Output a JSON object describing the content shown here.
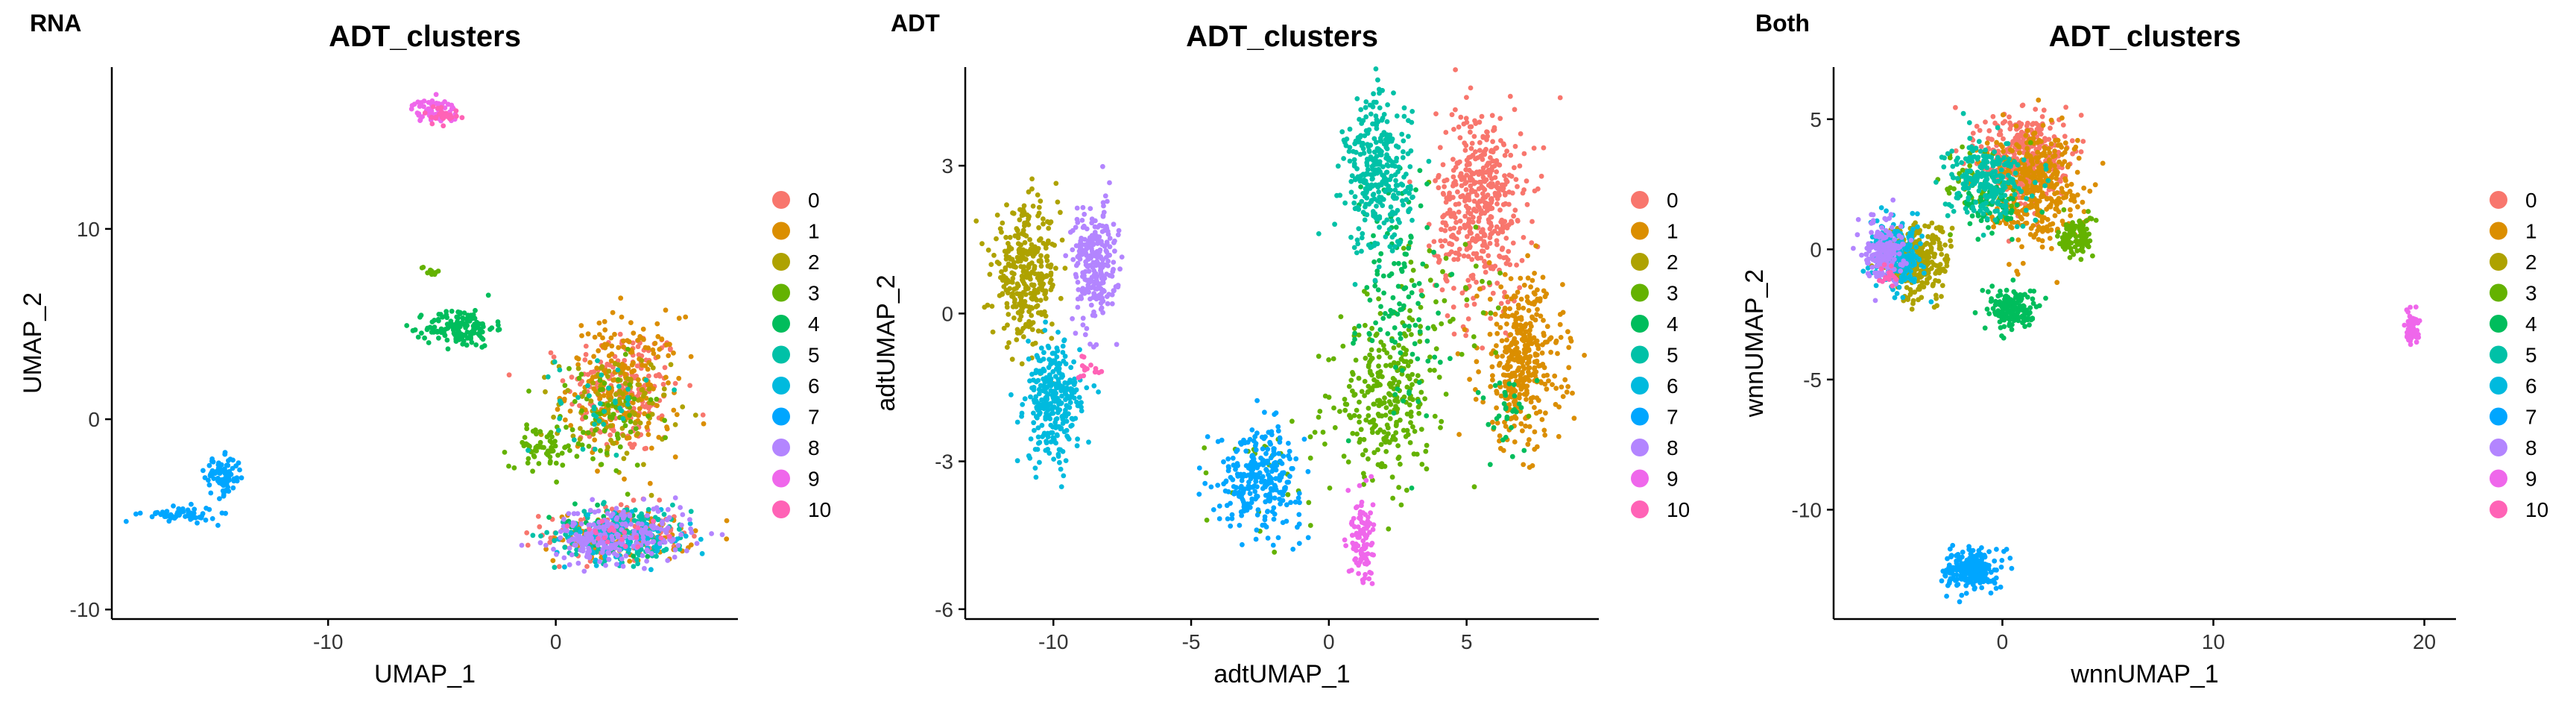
{
  "figure": {
    "panels": [
      {
        "tag": "RNA",
        "title": "ADT_clusters",
        "xlabel": "UMAP_1",
        "ylabel": "UMAP_2"
      },
      {
        "tag": "ADT",
        "title": "ADT_clusters",
        "xlabel": "adtUMAP_1",
        "ylabel": "adtUMAP_2"
      },
      {
        "tag": "Both",
        "title": "ADT_clusters",
        "xlabel": "wnnUMAP_1",
        "ylabel": "wnnUMAP_2"
      }
    ]
  },
  "chart_data": [
    {
      "type": "scatter",
      "tag": "RNA",
      "title": "ADT_clusters",
      "xlabel": "UMAP_1",
      "ylabel": "UMAP_2",
      "xlim": [
        -19.5,
        8.0
      ],
      "ylim": [
        -10.5,
        18.5
      ],
      "xticks": [
        -10,
        0
      ],
      "yticks": [
        -10,
        0,
        10
      ],
      "grid": false,
      "legend": {
        "position": "right",
        "labels": [
          "0",
          "1",
          "2",
          "3",
          "4",
          "5",
          "6",
          "7",
          "8",
          "9",
          "10"
        ]
      },
      "colors": [
        "#F8766D",
        "#DB8E00",
        "#AEA200",
        "#64B200",
        "#00BD5C",
        "#00C1A7",
        "#00BADE",
        "#00A6FF",
        "#B385FF",
        "#EF67EB",
        "#FF63B6"
      ],
      "clusters": [
        {
          "label": "0",
          "regions": [
            [
              3.0,
              1.5,
              2.5,
              3.5,
              200
            ],
            [
              2.5,
              -6.0,
              3.0,
              1.5,
              110
            ]
          ]
        },
        {
          "label": "1",
          "regions": [
            [
              3.0,
              1.8,
              2.5,
              3.6,
              210
            ],
            [
              3.0,
              -6.2,
              3.0,
              1.3,
              100
            ]
          ]
        },
        {
          "label": "2",
          "regions": [
            [
              2.5,
              0.5,
              2.5,
              3.0,
              100
            ]
          ]
        },
        {
          "label": "3",
          "regions": [
            [
              -0.5,
              -1.5,
              1.5,
              1.0,
              60
            ],
            [
              2.0,
              0.0,
              2.5,
              3.0,
              70
            ],
            [
              -5.5,
              7.8,
              0.4,
              0.3,
              10
            ]
          ]
        },
        {
          "label": "4",
          "regions": [
            [
              -4.2,
              4.8,
              1.5,
              1.0,
              150
            ],
            [
              2.5,
              -6.0,
              2.8,
              1.5,
              40
            ]
          ]
        },
        {
          "label": "5",
          "regions": [
            [
              3.0,
              -6.0,
              3.0,
              1.5,
              180
            ],
            [
              2.0,
              1.0,
              2.0,
              2.5,
              40
            ]
          ]
        },
        {
          "label": "6",
          "regions": [
            [
              3.0,
              -6.3,
              3.0,
              1.2,
              90
            ]
          ]
        },
        {
          "label": "7",
          "regions": [
            [
              -14.6,
              -3.0,
              0.8,
              1.0,
              90
            ],
            [
              -16.5,
              -5.0,
              1.6,
              0.4,
              60
            ]
          ]
        },
        {
          "label": "8",
          "regions": [
            [
              3.0,
              -6.0,
              3.0,
              1.5,
              180
            ],
            [
              1.5,
              -6.5,
              2.0,
              1.0,
              50
            ]
          ]
        },
        {
          "label": "9",
          "regions": [
            [
              -5.3,
              16.2,
              1.0,
              0.6,
              70
            ]
          ]
        },
        {
          "label": "10",
          "regions": [
            [
              -5.0,
              16.0,
              0.8,
              0.5,
              25
            ],
            [
              3.0,
              -6.0,
              2.5,
              1.2,
              20
            ]
          ]
        }
      ]
    },
    {
      "type": "scatter",
      "tag": "ADT",
      "title": "ADT_clusters",
      "xlabel": "adtUMAP_1",
      "ylabel": "adtUMAP_2",
      "xlim": [
        -13.2,
        9.8
      ],
      "ylim": [
        -6.2,
        5.0
      ],
      "xticks": [
        -10,
        -5,
        0,
        5
      ],
      "yticks": [
        -6,
        -3,
        0,
        3
      ],
      "grid": false,
      "legend": {
        "position": "right",
        "labels": [
          "0",
          "1",
          "2",
          "3",
          "4",
          "5",
          "6",
          "7",
          "8",
          "9",
          "10"
        ]
      },
      "colors": [
        "#F8766D",
        "#DB8E00",
        "#AEA200",
        "#64B200",
        "#00BD5C",
        "#00C1A7",
        "#00BADE",
        "#00A6FF",
        "#B385FF",
        "#EF67EB",
        "#FF63B6"
      ],
      "clusters": [
        {
          "label": "0",
          "regions": [
            [
              5.5,
              2.2,
              1.6,
              2.0,
              480
            ]
          ]
        },
        {
          "label": "1",
          "regions": [
            [
              7.0,
              -1.0,
              1.5,
              1.7,
              380
            ]
          ]
        },
        {
          "label": "2",
          "regions": [
            [
              -11.0,
              0.8,
              1.2,
              1.3,
              330
            ]
          ]
        },
        {
          "label": "3",
          "regions": [
            [
              2.0,
              -1.8,
              1.6,
              1.5,
              260
            ],
            [
              4.0,
              0.0,
              2.5,
              2.0,
              60
            ],
            [
              -2.0,
              -3.0,
              2.0,
              1.5,
              30
            ]
          ]
        },
        {
          "label": "4",
          "regions": [
            [
              2.5,
              0.5,
              1.5,
              2.5,
              120
            ],
            [
              6.5,
              -2.0,
              1.0,
              0.8,
              30
            ]
          ]
        },
        {
          "label": "5",
          "regions": [
            [
              1.8,
              2.8,
              1.2,
              1.6,
              330
            ]
          ]
        },
        {
          "label": "6",
          "regions": [
            [
              -10.0,
              -1.8,
              1.0,
              1.2,
              300
            ]
          ]
        },
        {
          "label": "7",
          "regions": [
            [
              -2.5,
              -3.3,
              1.5,
              1.0,
              280
            ]
          ]
        },
        {
          "label": "8",
          "regions": [
            [
              -8.5,
              1.0,
              0.8,
              1.2,
              250
            ]
          ]
        },
        {
          "label": "9",
          "regions": [
            [
              1.2,
              -4.6,
              0.4,
              1.0,
              110
            ]
          ]
        },
        {
          "label": "10",
          "regions": [
            [
              -8.6,
              -1.1,
              0.4,
              0.2,
              15
            ]
          ]
        }
      ]
    },
    {
      "type": "scatter",
      "tag": "Both",
      "title": "ADT_clusters",
      "xlabel": "wnnUMAP_1",
      "ylabel": "wnnUMAP_2",
      "xlim": [
        -8.0,
        21.5
      ],
      "ylim": [
        -14.2,
        7.0
      ],
      "xticks": [
        0,
        10,
        20
      ],
      "yticks": [
        -10,
        -5,
        0,
        5
      ],
      "grid": false,
      "legend": {
        "position": "right",
        "labels": [
          "0",
          "1",
          "2",
          "3",
          "4",
          "5",
          "6",
          "7",
          "8",
          "9",
          "10"
        ]
      },
      "colors": [
        "#F8766D",
        "#DB8E00",
        "#AEA200",
        "#64B200",
        "#00BD5C",
        "#00C1A7",
        "#00BADE",
        "#00A6FF",
        "#B385FF",
        "#EF67EB",
        "#FF63B6"
      ],
      "clusters": [
        {
          "label": "0",
          "regions": [
            [
              1.0,
              3.5,
              2.0,
              1.8,
              380
            ]
          ]
        },
        {
          "label": "1",
          "regions": [
            [
              1.5,
              2.5,
              2.2,
              2.2,
              380
            ]
          ]
        },
        {
          "label": "2",
          "regions": [
            [
              -4.0,
              -0.5,
              1.5,
              1.5,
              260
            ]
          ]
        },
        {
          "label": "3",
          "regions": [
            [
              3.5,
              0.5,
              0.8,
              0.8,
              100
            ],
            [
              -1.0,
              2.5,
              2.0,
              1.5,
              50
            ]
          ]
        },
        {
          "label": "4",
          "regions": [
            [
              0.5,
              -2.3,
              1.2,
              0.8,
              150
            ],
            [
              -0.5,
              1.5,
              1.5,
              1.0,
              60
            ]
          ]
        },
        {
          "label": "5",
          "regions": [
            [
              -0.8,
              2.7,
              1.8,
              1.5,
              240
            ]
          ]
        },
        {
          "label": "6",
          "regions": [
            [
              -5.0,
              -0.3,
              1.2,
              1.2,
              220
            ]
          ]
        },
        {
          "label": "7",
          "regions": [
            [
              -1.5,
              -12.3,
              1.2,
              0.8,
              230
            ]
          ]
        },
        {
          "label": "8",
          "regions": [
            [
              -5.6,
              0.0,
              0.9,
              1.2,
              170
            ]
          ]
        },
        {
          "label": "9",
          "regions": [
            [
              19.4,
              -3.0,
              0.3,
              0.6,
              70
            ]
          ]
        },
        {
          "label": "10",
          "regions": [
            [
              -5.5,
              -1.0,
              0.6,
              0.6,
              15
            ]
          ]
        }
      ]
    }
  ]
}
